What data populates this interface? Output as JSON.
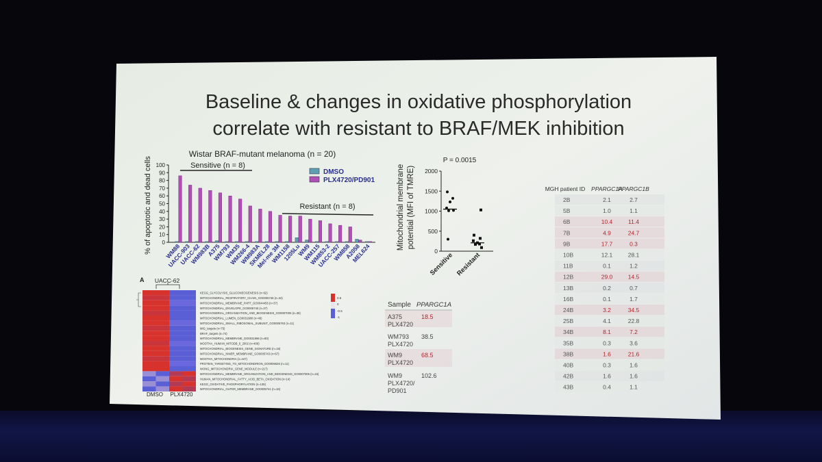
{
  "slide": {
    "title_line1": "Baseline & changes in oxidative phosphorylation",
    "title_line2": "correlate with resistant to BRAF/MEK inhibition"
  },
  "colors": {
    "slide_bg": "#e9eee8",
    "dmso": "#5f9fb4",
    "plx": "#b04fb5",
    "heat_red": "#d8322c",
    "heat_blue": "#5a5fd6",
    "highlight_row": "#e3d3d6",
    "red_text": "#b2242c"
  },
  "bar_chart": {
    "title": "Wistar BRAF-mutant melanoma (n = 20)",
    "ylabel": "% of apoptotic and dead cells",
    "sensitive_label": "Sensitive (n = 8)",
    "resistant_label": "Resistant (n = 8)",
    "legend": [
      "DMSO",
      "PLX4720/PD901"
    ]
  },
  "scatter_chart": {
    "pvalue": "P = 0.0015",
    "ylabel_line1": "Mitochondrial membrane",
    "ylabel_line2": "potential (MFI of TMRE)"
  },
  "chart_data": [
    {
      "type": "bar",
      "title": "Wistar BRAF-mutant melanoma (n = 20)",
      "ylabel": "% of apoptotic and dead cells",
      "ylim": [
        0,
        100
      ],
      "yticks": [
        0,
        10,
        20,
        30,
        40,
        50,
        60,
        70,
        80,
        90,
        100
      ],
      "categories": [
        "WM88",
        "UACC-903",
        "UACC-62",
        "WM983B",
        "A375",
        "WM793",
        "WM35",
        "WM266-4",
        "WM983A",
        "SKMEL28",
        "Mel-me 3M",
        "WM1158",
        "1205Lu",
        "WM9",
        "WM115",
        "WM853-2",
        "UACC-257",
        "WM858",
        "A2058",
        "MEL624"
      ],
      "series": [
        {
          "name": "DMSO",
          "values": [
            1,
            1,
            1,
            1,
            2,
            1,
            1,
            1,
            1,
            1,
            1,
            1,
            6,
            3,
            1,
            1,
            1,
            1,
            4,
            1
          ]
        },
        {
          "name": "PLX4720/PD901",
          "values": [
            86,
            74,
            70,
            67,
            64,
            60,
            56,
            47,
            43,
            40,
            35,
            34,
            34,
            30,
            28,
            24,
            22,
            20,
            3,
            1
          ]
        }
      ],
      "legend": "top-right"
    },
    {
      "type": "scatter",
      "categories": [
        "Sensitive",
        "Resistant"
      ],
      "ylim": [
        0,
        2000
      ],
      "yticks": [
        0,
        500,
        1000,
        1500,
        2000
      ],
      "series": [
        {
          "name": "Sensitive",
          "values": [
            1480,
            1320,
            1230,
            1080,
            1020,
            1010,
            300
          ],
          "median": 1050
        },
        {
          "name": "Resistant",
          "values": [
            1030,
            400,
            320,
            260,
            210,
            180,
            170,
            90
          ],
          "median": 210
        }
      ],
      "annotation": "P = 0.0015"
    }
  ],
  "heatmap": {
    "panel_letter": "A",
    "top_label": "UACC-62",
    "col_labels": [
      "DMSO",
      "PLX4720"
    ],
    "legend_labels": [
      "0.5",
      "0",
      "-0.5",
      "-1"
    ],
    "rows": [
      "KEGG_GLYCOLYSIS_GLUCONEOGENESIS (n=62)",
      "MITOCHONDRIAL_RESPIRATORY_CHAIN_GO0005746 (n=34)",
      "MITOCHONDRIAL_MEMBRANE_PART_GO0044455 (n=37)",
      "MITOCHONDRIAL_ENVELOPE_GO0005740 (n=37)",
      "MITOCHONDRIAL_ORGANIZATION_AND_BIOGENESIS_GO0007005 (n=38)",
      "MITOCHONDRIAL_LUMEN_GO0031980 (n=46)",
      "MITOCHONDRIAL_SMALL_RIBOSOMAL_SUBUNIT_GO0005763 (n=11)",
      "MIG_targets (n=75)",
      "BRAF_targets (n=74)",
      "MITOCHONDRIAL_MEMBRANE_GO0031966 (n=80)",
      "MOOTHA_HUMAN_MITODB_6_2002 (n=409)",
      "MITOCHONDRIAL_BIOGENESIS_GENE_SIGNATURE (n=18)",
      "MITOCHONDRIAL_INNER_MEMBRANE_GO0005743 (n=67)",
      "MOOTHA_MITOCHONDRIA (n=447)",
      "PROTEIN_TARGETING_TO_MITOCHONDRION_GO0006626 (n=11)",
      "WONG_MITOCHONDRIA_GENE_MODULE (n=217)",
      "MITOCHONDRIAL_MEMBRANE_ORGANIZATION_AND_BIOGENESIS_GO0007006 (n=15)",
      "HUMAN_MITOCHONDRIAL_FATTY_ACID_BETA_OXIDATION (n=14)",
      "KEGG_OXIDATIVE_PHOSPHORYLATION (n=135)",
      "MITOCHONDRIAL_OUTER_MEMBRANE_GO0005741 (n=18)"
    ]
  },
  "sample_table": {
    "headers": [
      "Sample",
      "PPARGC1A"
    ],
    "rows": [
      {
        "sample": [
          "A375",
          "PLX4720"
        ],
        "value": "18.5",
        "highlight": true
      },
      {
        "sample": [
          "WM793",
          "PLX4720"
        ],
        "value": "38.5",
        "highlight": false
      },
      {
        "sample": [
          "WM9",
          "PLX4720"
        ],
        "value": "68.5",
        "highlight": true
      },
      {
        "sample": [
          "WM9",
          "PLX4720/",
          "PD901"
        ],
        "value": "102.6",
        "highlight": false
      }
    ]
  },
  "patient_table": {
    "headers": [
      "MGH patient ID",
      "PPARGC1A",
      "PPARGC1B"
    ],
    "rows": [
      {
        "id": "2B",
        "a": "2.1",
        "b": "2.7",
        "highlight": false
      },
      {
        "id": "5B",
        "a": "1.0",
        "b": "1.1",
        "highlight": false
      },
      {
        "id": "6B",
        "a": "10.4",
        "b": "11.4",
        "highlight": true
      },
      {
        "id": "7B",
        "a": "4.9",
        "b": "24.7",
        "highlight": true
      },
      {
        "id": "9B",
        "a": "17.7",
        "b": "0.3",
        "highlight": true
      },
      {
        "id": "10B",
        "a": "12.1",
        "b": "28.1",
        "highlight": false
      },
      {
        "id": "11B",
        "a": "0.1",
        "b": "1.2",
        "highlight": false
      },
      {
        "id": "12B",
        "a": "29.0",
        "b": "14.5",
        "highlight": true
      },
      {
        "id": "13B",
        "a": "0.2",
        "b": "0.7",
        "highlight": false
      },
      {
        "id": "16B",
        "a": "0.1",
        "b": "1.7",
        "highlight": false
      },
      {
        "id": "24B",
        "a": "3.2",
        "b": "34.5",
        "highlight": true
      },
      {
        "id": "25B",
        "a": "4.1",
        "b": "22.8",
        "highlight": false
      },
      {
        "id": "34B",
        "a": "8.1",
        "b": "7.2",
        "highlight": true
      },
      {
        "id": "35B",
        "a": "0.3",
        "b": "3.6",
        "highlight": false
      },
      {
        "id": "38B",
        "a": "1.6",
        "b": "21.6",
        "highlight": true
      },
      {
        "id": "40B",
        "a": "0.3",
        "b": "1.6",
        "highlight": false
      },
      {
        "id": "42B",
        "a": "1.6",
        "b": "1.6",
        "highlight": false
      },
      {
        "id": "43B",
        "a": "0.4",
        "b": "1.1",
        "highlight": false
      }
    ]
  }
}
